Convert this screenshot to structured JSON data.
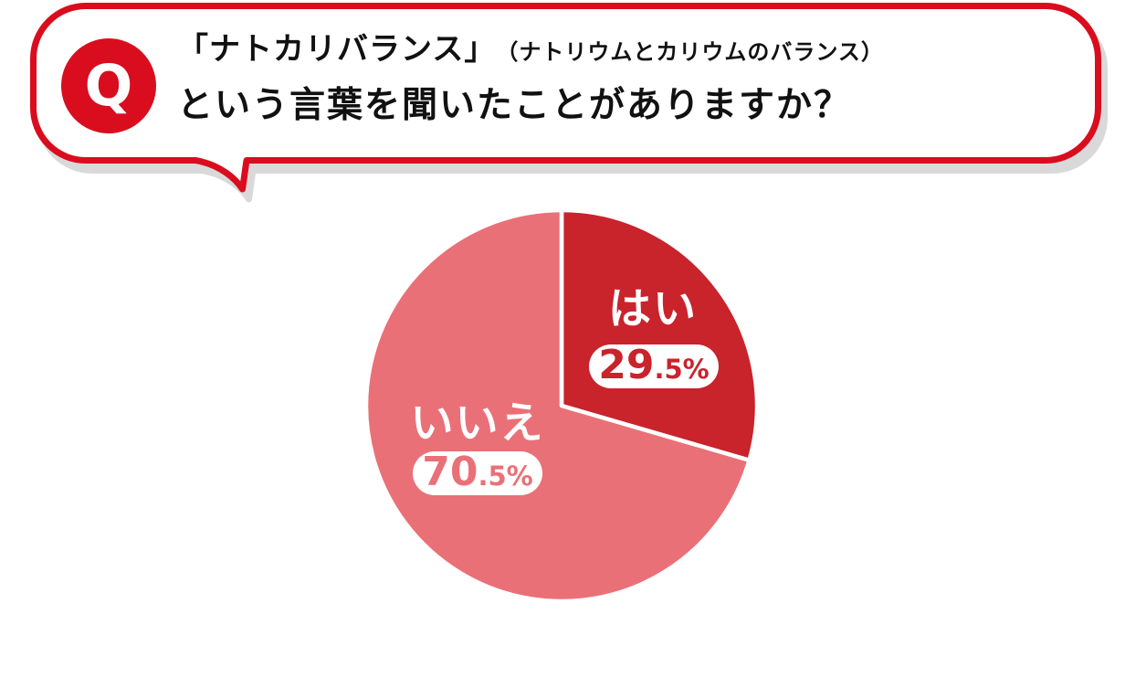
{
  "question": {
    "badge": "Q",
    "line1_main": "「ナトカリバランス」",
    "line1_sub": "（ナトリウムとカリウムのバランス）",
    "line2": "という言葉を聞いたことがありますか？"
  },
  "chart_data": {
    "type": "pie",
    "title": "「ナトカリバランス」（ナトリウムとカリウムのバランス）という言葉を聞いたことがありますか？",
    "categories": [
      "はい",
      "いいえ"
    ],
    "values": [
      29.5,
      70.5
    ],
    "unit": "%",
    "colors": [
      "#c9232c",
      "#ea7078"
    ],
    "start_angle": "12 o'clock",
    "direction": "clockwise",
    "legend": "none",
    "labels_inside_slices": true,
    "slice_gap_color": "#ffffff"
  },
  "pie_labels": {
    "yes": {
      "label": "はい",
      "value_int": "29",
      "value_frac": ".5%"
    },
    "no": {
      "label": "いいえ",
      "value_int": "70",
      "value_frac": ".5%"
    }
  },
  "colors": {
    "accent_red": "#d90d1e",
    "badge_red": "#d90d1e",
    "slice_yes_red": "#c9232c",
    "slice_no_pink": "#ea7078",
    "shadow_gray": "#d9d9d9",
    "text_black": "#111111",
    "pill_bg": "#ffffff",
    "page_bg": "#ffffff"
  }
}
